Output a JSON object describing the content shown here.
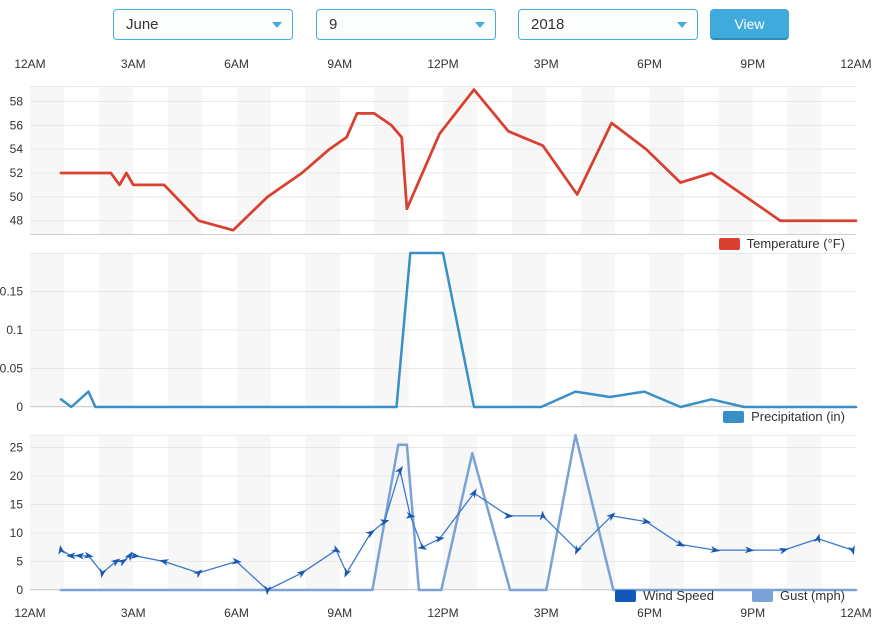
{
  "controls": {
    "month": {
      "value": "June"
    },
    "day": {
      "value": "9"
    },
    "year": {
      "value": "2018"
    },
    "view_label": "View"
  },
  "time_axis": {
    "labels": [
      "12AM",
      "3AM",
      "6AM",
      "9AM",
      "12PM",
      "3PM",
      "6PM",
      "9PM",
      "12AM"
    ],
    "hours": [
      0,
      3,
      6,
      9,
      12,
      15,
      18,
      21,
      24
    ]
  },
  "colors": {
    "band": "#f7f7f7",
    "grid": "#e8e8e8",
    "axis_line": "#cfcfcf",
    "dropdown_border": "#41aede",
    "button": "#41aadd",
    "temperature": "#d9402f",
    "precipitation": "#3a8fc7",
    "wind_speed": "#1258b8",
    "wind_line": "#3d79cc",
    "gust": "#7aa2d6"
  },
  "chart_data": [
    {
      "id": "temperature",
      "type": "line",
      "xlim": [
        0,
        24
      ],
      "ylim": [
        46.8,
        59.3
      ],
      "yticks": [
        48,
        50,
        52,
        54,
        56,
        58
      ],
      "ytick_labels": [
        "48",
        "50",
        "52",
        "54",
        "56",
        "58"
      ],
      "legend": [
        {
          "label": "Temperature (°F)",
          "color": "#d9402f"
        }
      ],
      "series": [
        {
          "name": "Temperature (°F)",
          "color": "#d9402f",
          "width": 2.75,
          "x": [
            0.9,
            2.35,
            2.6,
            2.8,
            3.0,
            3.9,
            4.9,
            5.9,
            6.9,
            7.9,
            8.7,
            9.2,
            9.5,
            10.0,
            10.5,
            10.8,
            10.95,
            11.9,
            12.9,
            13.9,
            14.9,
            15.9,
            16.9,
            17.9,
            18.9,
            19.8,
            21.8,
            24
          ],
          "values": [
            52,
            52,
            51,
            52,
            51,
            51,
            48,
            47.2,
            50,
            52,
            54,
            55,
            57,
            57,
            56,
            55,
            49,
            55.3,
            59,
            55.5,
            54.3,
            50.2,
            56.2,
            54,
            51.2,
            52,
            48,
            48
          ]
        }
      ]
    },
    {
      "id": "precipitation",
      "type": "line",
      "xlim": [
        0,
        24
      ],
      "ylim": [
        0,
        0.2
      ],
      "yticks": [
        0,
        0.05,
        0.1,
        0.15
      ],
      "ytick_labels": [
        "0",
        "0.05",
        "0.1",
        "0.15"
      ],
      "legend": [
        {
          "label": "Precipitation (in)",
          "color": "#3a8fc7"
        }
      ],
      "series": [
        {
          "name": "Precipitation (in)",
          "color": "#3a8fc7",
          "width": 2.5,
          "x": [
            0.9,
            1.2,
            1.7,
            1.9,
            10.65,
            11.05,
            12.0,
            12.9,
            14.85,
            15.85,
            16.85,
            17.85,
            18.9,
            19.8,
            20.75,
            24
          ],
          "values": [
            0.01,
            0,
            0.02,
            0,
            0,
            0.2,
            0.2,
            0,
            0,
            0.02,
            0.013,
            0.02,
            0,
            0.01,
            0,
            0
          ]
        }
      ]
    },
    {
      "id": "wind",
      "type": "line",
      "xlim": [
        0,
        24
      ],
      "ylim": [
        0,
        27.2
      ],
      "yticks": [
        0,
        5,
        10,
        15,
        20,
        25
      ],
      "ytick_labels": [
        "0",
        "5",
        "10",
        "15",
        "20",
        "25"
      ],
      "legend": [
        {
          "label": "Wind Speed",
          "color": "#1258b8"
        },
        {
          "label": "Gust (mph)",
          "color": "#7aa2d6"
        }
      ],
      "series": [
        {
          "name": "Gust (mph)",
          "color": "#7aa2d6",
          "width": 2.5,
          "x": [
            0.9,
            9.95,
            10.7,
            10.95,
            11.3,
            11.95,
            12.85,
            13.95,
            15.0,
            15.85,
            16.95,
            24
          ],
          "values": [
            0,
            0,
            25.5,
            25.5,
            0,
            0,
            24,
            0,
            0,
            27.2,
            0,
            0
          ]
        },
        {
          "name": "Wind Speed",
          "color": "#3d79cc",
          "width": 1.3,
          "marker": "wind-arrow",
          "marker_color": "#1a57b0",
          "x": [
            0.9,
            1.2,
            1.45,
            1.7,
            2.1,
            2.5,
            2.7,
            2.9,
            3.05,
            3.9,
            4.9,
            6.0,
            6.9,
            7.9,
            8.9,
            9.2,
            9.9,
            10.3,
            10.75,
            11.05,
            11.4,
            11.9,
            12.9,
            13.9,
            14.9,
            15.9,
            16.9,
            17.9,
            18.9,
            19.9,
            20.9,
            21.9,
            22.9,
            23.9
          ],
          "values": [
            7,
            6,
            6,
            6,
            3,
            5,
            5,
            6,
            6,
            5,
            3,
            5,
            0,
            3,
            7,
            3,
            10,
            12,
            21,
            13,
            7.5,
            9,
            17,
            13,
            13,
            7,
            13,
            12,
            8,
            7,
            7,
            7,
            9,
            7
          ],
          "rotations": [
            -100,
            180,
            185,
            10,
            100,
            -35,
            -30,
            -55,
            5,
            -165,
            -40,
            5,
            95,
            -35,
            30,
            115,
            -35,
            -15,
            -55,
            10,
            30,
            -10,
            -60,
            5,
            -95,
            115,
            -40,
            10,
            25,
            10,
            5,
            -15,
            -75,
            75
          ]
        }
      ]
    }
  ]
}
